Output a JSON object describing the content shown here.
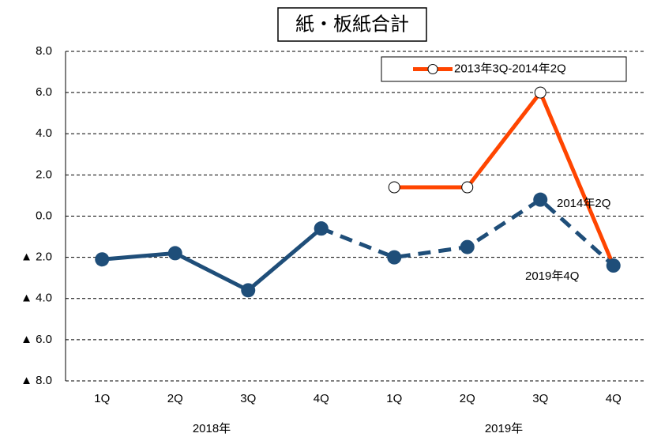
{
  "chart_data": {
    "type": "line",
    "title": "紙・板紙合計",
    "categories": [
      "1Q",
      "2Q",
      "3Q",
      "4Q",
      "1Q",
      "2Q",
      "3Q",
      "4Q"
    ],
    "groups": [
      {
        "label": "2018年",
        "span": [
          0,
          3
        ]
      },
      {
        "label": "2019年",
        "span": [
          4,
          7
        ]
      }
    ],
    "series": [
      {
        "name": "2013年3Q-2014年2Q",
        "color": "#ff4500",
        "marker": "hollow",
        "values": [
          null,
          null,
          null,
          null,
          1.4,
          1.4,
          6.0,
          -2.4
        ]
      },
      {
        "color": "#1f4e79",
        "marker": "filled",
        "values": [
          -2.1,
          -1.8,
          -3.6,
          -0.6,
          null,
          null,
          null,
          null
        ]
      },
      {
        "color": "#1f4e79",
        "marker": "filled",
        "dashed": true,
        "values": [
          null,
          null,
          null,
          -0.6,
          -2.0,
          -1.5,
          0.8,
          -2.4
        ]
      }
    ],
    "annotations": [
      {
        "text": "2014年2Q",
        "index": 6
      },
      {
        "text": "2019年4Q",
        "index": 7
      }
    ],
    "ylim": [
      -8,
      8
    ],
    "yticks": [
      {
        "value": 8,
        "label": "8.0"
      },
      {
        "value": 6,
        "label": "6.0"
      },
      {
        "value": 4,
        "label": "4.0"
      },
      {
        "value": 2,
        "label": "2.0"
      },
      {
        "value": 0,
        "label": "0.0"
      },
      {
        "value": -2,
        "label": "▲ 2.0"
      },
      {
        "value": -4,
        "label": "▲ 4.0"
      },
      {
        "value": -6,
        "label": "▲ 6.0"
      },
      {
        "value": -8,
        "label": "▲ 8.0"
      }
    ],
    "grid": true,
    "legend": "top-right"
  }
}
